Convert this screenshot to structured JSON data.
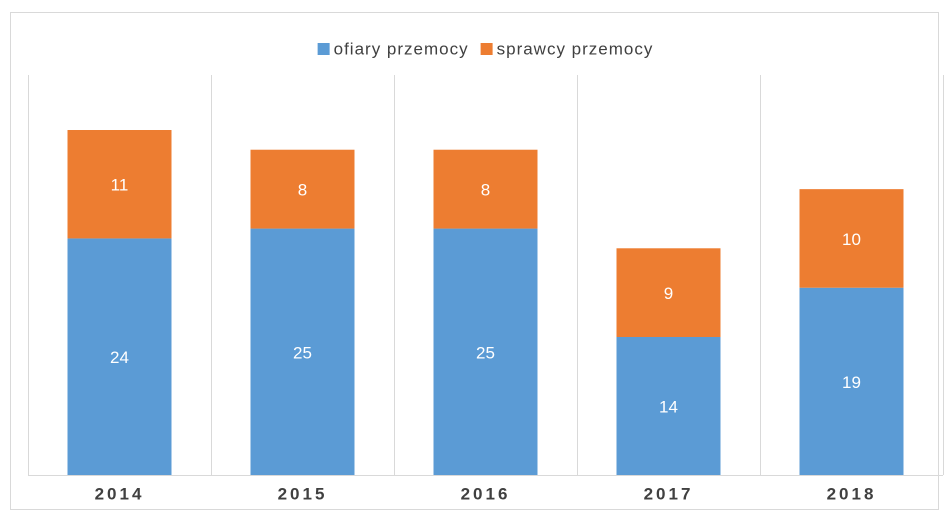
{
  "chart_data": {
    "type": "stacked-bar",
    "categories": [
      "2014",
      "2015",
      "2016",
      "2017",
      "2018"
    ],
    "series": [
      {
        "name": "ofiary przemocy",
        "color": "#5b9bd5",
        "values": [
          24,
          25,
          25,
          14,
          19
        ]
      },
      {
        "name": "sprawcy przemocy",
        "color": "#ed7d31",
        "values": [
          11,
          8,
          8,
          9,
          10
        ]
      }
    ],
    "legend": "top"
  }
}
